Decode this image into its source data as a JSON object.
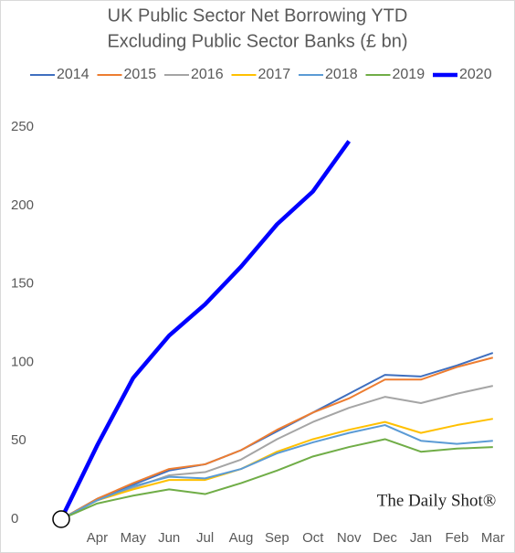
{
  "chart_data": {
    "type": "line",
    "title": [
      "UK Public Sector Net Borrowing YTD",
      "Excluding Public Sector Banks (£ bn)"
    ],
    "categories": [
      null,
      "Apr",
      "May",
      "Jun",
      "Jul",
      "Aug",
      "Sep",
      "Oct",
      "Nov",
      "Dec",
      "Jan",
      "Feb",
      "Mar"
    ],
    "series": [
      {
        "name": "2014",
        "color": "#3f6fbf",
        "values": [
          0,
          13,
          22,
          31,
          35,
          44,
          56,
          68,
          80,
          92,
          91,
          98,
          106
        ]
      },
      {
        "name": "2015",
        "color": "#ed7d31",
        "values": [
          0,
          13,
          23,
          32,
          35,
          44,
          57,
          68,
          77,
          89,
          89,
          97,
          103
        ]
      },
      {
        "name": "2016",
        "color": "#a5a5a5",
        "values": [
          0,
          12,
          20,
          28,
          30,
          38,
          51,
          62,
          71,
          78,
          74,
          80,
          85
        ]
      },
      {
        "name": "2017",
        "color": "#ffc000",
        "values": [
          0,
          12,
          19,
          25,
          25,
          32,
          43,
          51,
          57,
          62,
          55,
          60,
          64
        ]
      },
      {
        "name": "2018",
        "color": "#5b9bd5",
        "values": [
          0,
          12,
          21,
          27,
          26,
          32,
          42,
          49,
          55,
          60,
          50,
          48,
          50
        ]
      },
      {
        "name": "2019",
        "color": "#70ad47",
        "values": [
          0,
          10,
          15,
          19,
          16,
          23,
          31,
          40,
          46,
          51,
          43,
          45,
          46
        ]
      },
      {
        "name": "2020",
        "color": "#0000ff",
        "values": [
          0,
          47,
          90,
          117,
          137,
          161,
          188,
          209,
          241,
          null,
          null,
          null,
          null
        ]
      }
    ],
    "ylim": [
      0,
      250
    ],
    "yticks": [
      0,
      50,
      100,
      150,
      200,
      250
    ],
    "watermark": "The Daily Shot®"
  }
}
